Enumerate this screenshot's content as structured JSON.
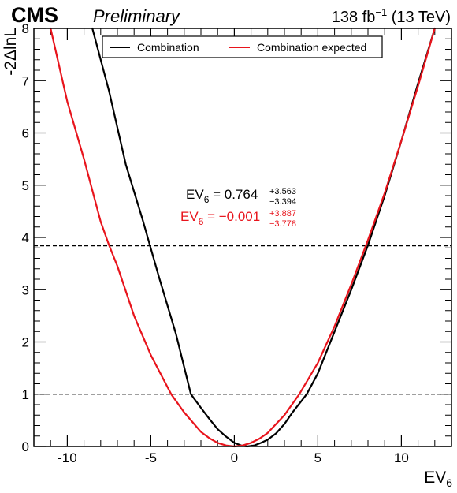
{
  "header": {
    "cms": "CMS",
    "preliminary": "Preliminary",
    "lumi": "138 fb",
    "lumi_exp": "−1",
    "energy": "(13 TeV)"
  },
  "axes": {
    "xlabel_main": "EV",
    "xlabel_sub": "6",
    "ylabel": "-2ΔlnL"
  },
  "results": {
    "observed": {
      "lhs_main": "EV",
      "lhs_sub": "6",
      "rhs": " = 0.764",
      "up": "+3.563",
      "down": "−3.394",
      "color": "#000000"
    },
    "expected": {
      "lhs_main": "EV",
      "lhs_sub": "6",
      "rhs": " = −0.001",
      "up": "+3.887",
      "down": "−3.778",
      "color": "#e8141c"
    }
  },
  "chart_data": {
    "type": "line",
    "xlim": [
      -12,
      13
    ],
    "ylim": [
      0,
      8
    ],
    "x_ticks": [
      -10,
      -5,
      0,
      5,
      10
    ],
    "x_tick_labels": [
      "-10",
      "-5",
      "0",
      "5",
      "10"
    ],
    "y_ticks": [
      0,
      1,
      2,
      3,
      4,
      5,
      6,
      7,
      8
    ],
    "y_tick_labels": [
      "0",
      "1",
      "2",
      "3",
      "4",
      "5",
      "6",
      "7",
      "8"
    ],
    "reference_lines": [
      1.0,
      3.84
    ],
    "legend": {
      "placement": "top-center",
      "entries": [
        "Combination",
        "Combination expected"
      ]
    },
    "series": [
      {
        "name": "Combination",
        "color": "#000000",
        "x": [
          -8.5,
          -7.5,
          -6.5,
          -5.5,
          -4.5,
          -3.5,
          -2.6,
          -2.0,
          -1.5,
          -1.0,
          -0.5,
          0.0,
          0.4,
          0.764,
          1.2,
          1.6,
          2.0,
          2.5,
          3.0,
          3.5,
          4.33,
          5.0,
          6.0,
          7.0,
          8.0,
          9.0,
          10.0,
          11.0,
          12.0
        ],
        "y": [
          8.0,
          6.8,
          5.4,
          4.35,
          3.23,
          2.16,
          1.0,
          0.74,
          0.53,
          0.33,
          0.19,
          0.07,
          0.02,
          0.0,
          0.02,
          0.07,
          0.13,
          0.25,
          0.43,
          0.66,
          1.0,
          1.4,
          2.2,
          3.0,
          3.85,
          4.8,
          5.85,
          6.95,
          8.0
        ]
      },
      {
        "name": "Combination expected",
        "color": "#e8141c",
        "x": [
          -11.0,
          -10.0,
          -9.0,
          -8.0,
          -7.5,
          -7.0,
          -6.0,
          -5.0,
          -3.78,
          -3.0,
          -2.0,
          -1.5,
          -1.0,
          -0.5,
          -0.001,
          0.5,
          1.0,
          1.5,
          2.0,
          3.0,
          3.887,
          5.0,
          6.0,
          7.0,
          8.0,
          9.0,
          10.0,
          11.0,
          12.0
        ],
        "y": [
          8.0,
          6.6,
          5.5,
          4.3,
          3.85,
          3.45,
          2.5,
          1.75,
          1.0,
          0.65,
          0.28,
          0.16,
          0.07,
          0.02,
          0.0,
          0.02,
          0.07,
          0.15,
          0.26,
          0.6,
          1.0,
          1.6,
          2.3,
          3.1,
          3.95,
          4.85,
          5.85,
          6.9,
          8.0
        ]
      }
    ]
  }
}
